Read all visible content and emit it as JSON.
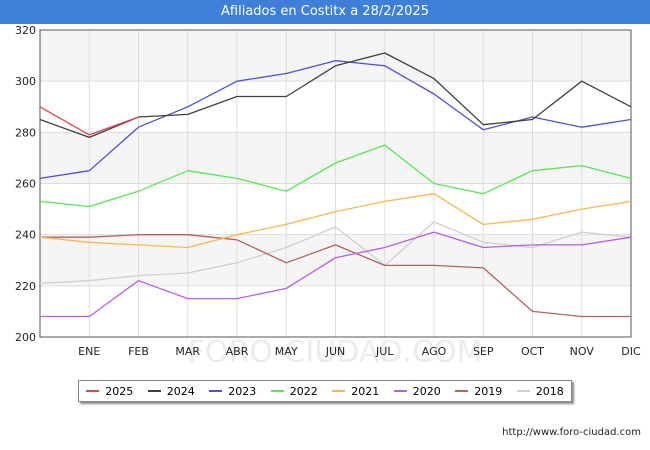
{
  "header": {
    "title": "Afiliados en Costitx a 28/2/2025"
  },
  "footer": {
    "url": "http://www.foro-ciudad.com"
  },
  "watermark": "FORO-CIUDAD.COM",
  "chart_data": {
    "type": "line",
    "title": "Afiliados en Costitx a 28/2/2025",
    "xlabel": "",
    "ylabel": "",
    "categories": [
      "",
      "ENE",
      "FEB",
      "MAR",
      "ABR",
      "MAY",
      "JUN",
      "JUL",
      "AGO",
      "SEP",
      "OCT",
      "NOV",
      "DIC"
    ],
    "ylim": [
      200,
      320
    ],
    "yticks": [
      200,
      220,
      240,
      260,
      280,
      300,
      320
    ],
    "grid": true,
    "legend_position": "bottom",
    "series": [
      {
        "name": "2018",
        "color": "#d0d0d0",
        "values": [
          221,
          222,
          224,
          225,
          229,
          235,
          243,
          228,
          245,
          237,
          235,
          241,
          239
        ]
      },
      {
        "name": "2019",
        "color": "#b0645f",
        "values": [
          239,
          239,
          240,
          240,
          238,
          229,
          236,
          228,
          228,
          227,
          210,
          208,
          208
        ]
      },
      {
        "name": "2020",
        "color": "#b75ee6",
        "values": [
          208,
          208,
          222,
          215,
          215,
          219,
          231,
          235,
          241,
          235,
          236,
          236,
          239
        ]
      },
      {
        "name": "2021",
        "color": "#f5b84c",
        "values": [
          239,
          237,
          236,
          235,
          240,
          244,
          249,
          253,
          256,
          244,
          246,
          250,
          253
        ]
      },
      {
        "name": "2022",
        "color": "#55e84f",
        "values": [
          253,
          251,
          257,
          265,
          262,
          257,
          268,
          275,
          260,
          256,
          265,
          267,
          262
        ]
      },
      {
        "name": "2023",
        "color": "#4f4fd9",
        "values": [
          262,
          265,
          282,
          290,
          300,
          303,
          308,
          306,
          295,
          281,
          286,
          282,
          285
        ]
      },
      {
        "name": "2024",
        "color": "#404040",
        "values": [
          285,
          278,
          286,
          287,
          294,
          294,
          306,
          311,
          301,
          283,
          285,
          300,
          290
        ]
      },
      {
        "name": "2025",
        "color": "#e8434c",
        "values": [
          290,
          279,
          286,
          null,
          null,
          null,
          null,
          null,
          null,
          null,
          null,
          null,
          null
        ]
      }
    ],
    "legend_order": [
      "2025",
      "2024",
      "2023",
      "2022",
      "2021",
      "2020",
      "2019",
      "2018"
    ]
  }
}
